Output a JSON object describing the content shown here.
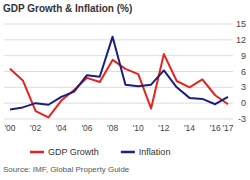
{
  "chart_data": {
    "type": "line",
    "title": "GDP Growth & Inflation (%)",
    "categories": [
      "'00",
      null,
      "'02",
      null,
      "'04",
      null,
      "'06",
      null,
      "'08",
      null,
      "'10",
      null,
      "'12",
      null,
      "'14",
      null,
      "'16",
      "'17"
    ],
    "series": [
      {
        "name": "GDP Growth",
        "color": "#e8231c",
        "values": [
          6.5,
          4.3,
          -1.5,
          -2.7,
          0.5,
          2.5,
          4.8,
          4.0,
          8.2,
          6.5,
          5.5,
          -1.0,
          9.3,
          4.2,
          3.0,
          4.5,
          1.5,
          -0.2
        ]
      },
      {
        "name": "Inflation",
        "color": "#1b1f7d",
        "values": [
          -1.2,
          -0.8,
          0.0,
          -0.3,
          1.2,
          2.2,
          5.3,
          5.0,
          12.6,
          3.5,
          3.2,
          3.5,
          6.2,
          3.0,
          1.0,
          0.8,
          -0.2,
          1.2
        ]
      }
    ],
    "ylim": [
      -3,
      15
    ],
    "yticks": [
      -3,
      0,
      3,
      6,
      9,
      12,
      15
    ],
    "grid": true,
    "legend": "bottom",
    "source": "Source: IMF, Global Property Guide"
  }
}
